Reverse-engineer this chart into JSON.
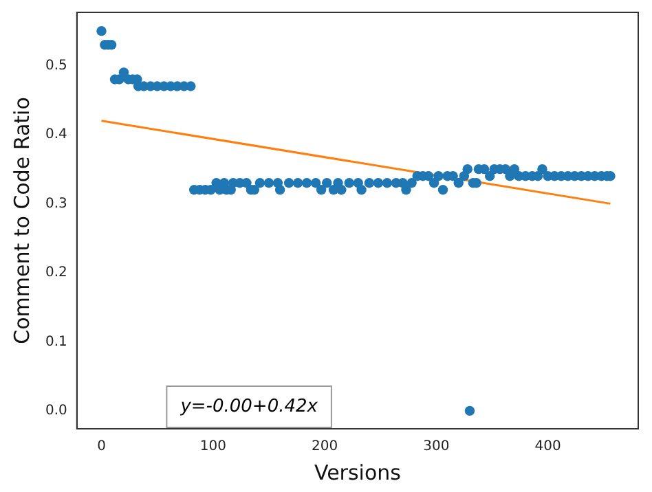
{
  "chart_data": {
    "type": "scatter",
    "xlabel": "Versions",
    "ylabel": "Comment to Code Ratio",
    "xlim": [
      -22,
      481
    ],
    "ylim": [
      -0.026,
      0.577
    ],
    "xticks": [
      0,
      100,
      200,
      300,
      400
    ],
    "yticks": [
      {
        "value": 0,
        "label": "0.0"
      },
      {
        "value": 0.1,
        "label": "0.1"
      },
      {
        "value": 0.2,
        "label": "0.2"
      },
      {
        "value": 0.3,
        "label": "0.3"
      },
      {
        "value": 0.4,
        "label": "0.4"
      },
      {
        "value": 0.5,
        "label": "0.5"
      }
    ],
    "grid": false,
    "legend": false,
    "marker": "circle",
    "annotations": [
      "y=-0.00+0.42x"
    ],
    "series": [
      {
        "color": "#1f77b4",
        "x": [
          0,
          3,
          6,
          9,
          12,
          16,
          20,
          24,
          28,
          32,
          33,
          38,
          44,
          50,
          56,
          62,
          68,
          74,
          80,
          83,
          88,
          93,
          98,
          103,
          106,
          110,
          112,
          116,
          118,
          124,
          130,
          134,
          137,
          142,
          150,
          158,
          160,
          168,
          176,
          184,
          192,
          197,
          202,
          208,
          212,
          215,
          222,
          230,
          233,
          240,
          248,
          256,
          264,
          270,
          273,
          278,
          283,
          288,
          293,
          298,
          302,
          306,
          310,
          315,
          320,
          325,
          328,
          330,
          333,
          336,
          338,
          343,
          348,
          352,
          357,
          362,
          366,
          370,
          374,
          380,
          386,
          391,
          395,
          400,
          406,
          412,
          418,
          424,
          430,
          436,
          442,
          448,
          453,
          456
        ],
        "values": [
          0.55,
          0.53,
          0.53,
          0.53,
          0.48,
          0.48,
          0.49,
          0.48,
          0.48,
          0.48,
          0.47,
          0.47,
          0.47,
          0.47,
          0.47,
          0.47,
          0.47,
          0.47,
          0.47,
          0.32,
          0.32,
          0.32,
          0.32,
          0.33,
          0.32,
          0.33,
          0.32,
          0.32,
          0.33,
          0.33,
          0.33,
          0.32,
          0.32,
          0.33,
          0.33,
          0.33,
          0.32,
          0.33,
          0.33,
          0.33,
          0.33,
          0.32,
          0.33,
          0.32,
          0.33,
          0.32,
          0.33,
          0.33,
          0.32,
          0.33,
          0.33,
          0.33,
          0.33,
          0.33,
          0.32,
          0.33,
          0.34,
          0.34,
          0.34,
          0.33,
          0.34,
          0.32,
          0.34,
          0.34,
          0.33,
          0.34,
          0.35,
          0.0,
          0.33,
          0.33,
          0.35,
          0.35,
          0.34,
          0.35,
          0.35,
          0.35,
          0.34,
          0.35,
          0.34,
          0.34,
          0.34,
          0.34,
          0.35,
          0.34,
          0.34,
          0.34,
          0.34,
          0.34,
          0.34,
          0.34,
          0.34,
          0.34,
          0.34,
          0.34
        ]
      },
      {
        "type": "line",
        "color": "#ff7f0e",
        "marker": "none",
        "x": [
          0,
          456
        ],
        "values": [
          0.42,
          0.3
        ]
      }
    ]
  }
}
